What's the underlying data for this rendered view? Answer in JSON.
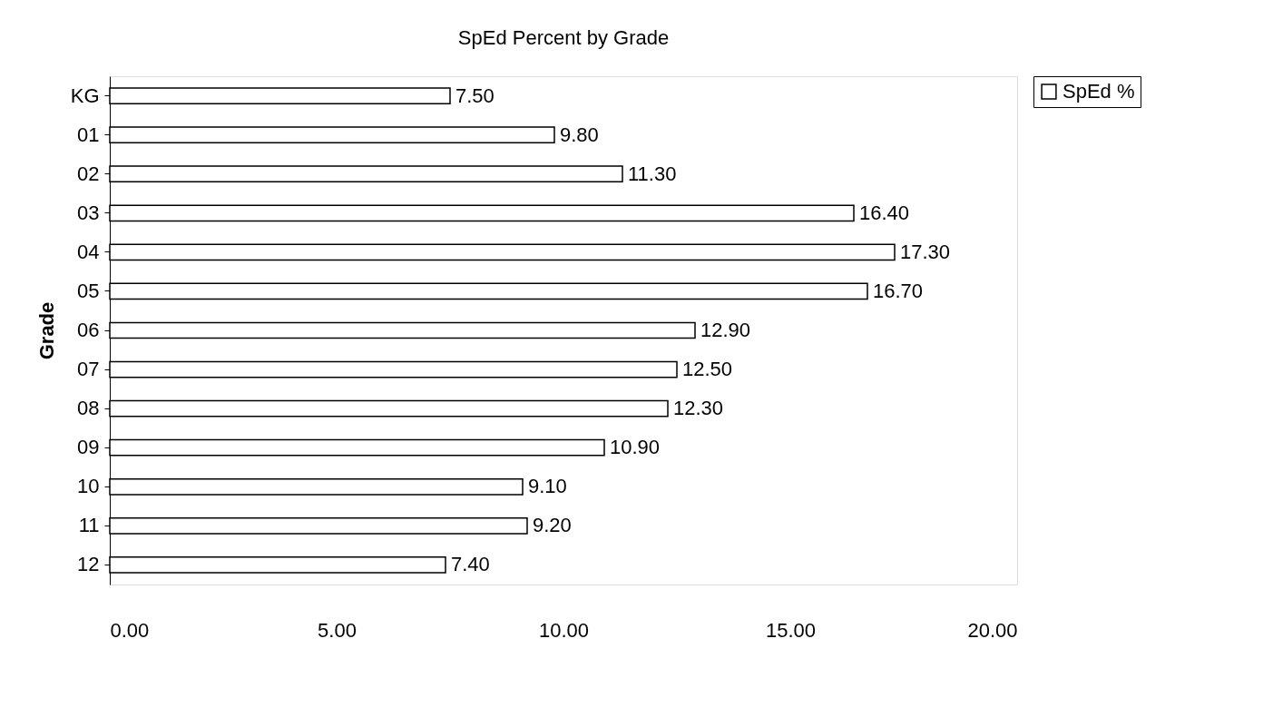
{
  "chart_data": {
    "type": "bar",
    "orientation": "horizontal",
    "title": "SpEd Percent by Grade",
    "ylabel": "Grade",
    "categories": [
      "KG",
      "01",
      "02",
      "03",
      "04",
      "05",
      "06",
      "07",
      "08",
      "09",
      "10",
      "11",
      "12"
    ],
    "series": [
      {
        "name": "SpEd %",
        "color": "#ffffff",
        "values": [
          7.5,
          9.8,
          11.3,
          16.4,
          17.3,
          16.7,
          12.9,
          12.5,
          12.3,
          10.9,
          9.1,
          9.2,
          7.4
        ],
        "value_labels": [
          "7.50",
          "9.80",
          "11.30",
          "16.40",
          "17.30",
          "16.70",
          "12.90",
          "12.50",
          "12.30",
          "10.90",
          "9.10",
          "9.20",
          "7.40"
        ]
      }
    ],
    "xlim": [
      0,
      20
    ],
    "xticks": [
      {
        "value": 0,
        "label": "0.00"
      },
      {
        "value": 5,
        "label": "5.00"
      },
      {
        "value": 10,
        "label": "10.00"
      },
      {
        "value": 15,
        "label": "15.00"
      },
      {
        "value": 20,
        "label": "20.00"
      }
    ],
    "grid": false,
    "legend": "right"
  }
}
